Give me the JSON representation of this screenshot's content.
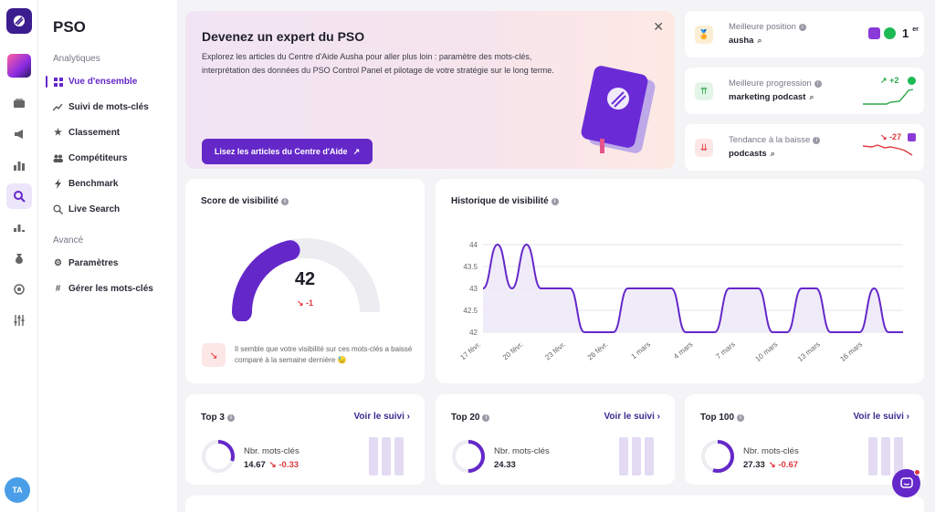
{
  "sidebar": {
    "title": "PSO",
    "section_analytics": "Analytiques",
    "section_advanced": "Avancé",
    "items": [
      {
        "label": "Vue d'ensemble",
        "icon": "grid-icon",
        "active": true
      },
      {
        "label": "Suivi de mots-clés",
        "icon": "trend-icon"
      },
      {
        "label": "Classement",
        "icon": "star-icon"
      },
      {
        "label": "Compétiteurs",
        "icon": "users-icon"
      },
      {
        "label": "Benchmark",
        "icon": "bolt-icon"
      },
      {
        "label": "Live Search",
        "icon": "search-icon"
      }
    ],
    "advanced_items": [
      {
        "label": "Paramètres",
        "icon": "gear-icon"
      },
      {
        "label": "Gérer les mots-clés",
        "icon": "hashtag-settings-icon"
      }
    ]
  },
  "rail": {
    "avatar_initials": "TA"
  },
  "promo": {
    "title": "Devenez un expert du PSO",
    "body": "Explorez les articles du Centre d'Aide Ausha pour aller plus loin : paramètre des mots-clés, interprétation des données du PSO Control Panel et pilotage de votre stratégie sur le long terme.",
    "cta": "Lisez les articles du Centre d'Aide"
  },
  "stats": [
    {
      "label": "Meilleure position",
      "value": "ausha",
      "rank": "1",
      "rank_suffix": "er",
      "badge_color": "#fbeed3"
    },
    {
      "label": "Meilleure progression",
      "value": "marketing podcast",
      "delta": "+2",
      "delta_color": "#2aa84a",
      "badge_color": "#e3f5e6"
    },
    {
      "label": "Tendance à la baisse",
      "value": "podcasts",
      "delta": "-27",
      "delta_color": "#e0393e",
      "badge_color": "#fde6e6"
    }
  ],
  "visibility_score": {
    "title": "Score de visibilité",
    "value": "42",
    "fraction": 0.42,
    "delta": "-1",
    "note": "Il semble que votre visibilité sur ces mots-clés a baissé comparé à la semaine dernière 😓"
  },
  "history": {
    "title": "Historique de visibilité",
    "chart_data": {
      "type": "line",
      "ylim": [
        42,
        44
      ],
      "y_ticks": [
        "44",
        "43.5",
        "43",
        "42.5",
        "42"
      ],
      "x_ticks": [
        "17 févr.",
        "20 févr.",
        "23 févr.",
        "26 févr.",
        "1 mars",
        "4 mars",
        "7 mars",
        "10 mars",
        "13 mars",
        "16 mars"
      ],
      "x": [
        0,
        1,
        2,
        3,
        4,
        5,
        6,
        7,
        8,
        9,
        10,
        11,
        12,
        13,
        14,
        15,
        16,
        17,
        18,
        19,
        20,
        21,
        22,
        23,
        24,
        25,
        26,
        27,
        28,
        29
      ],
      "values": [
        43,
        44,
        43,
        44,
        43,
        43,
        43,
        42,
        42,
        42,
        43,
        43,
        43,
        43,
        42,
        42,
        42,
        43,
        43,
        43,
        42,
        42,
        43,
        43,
        42,
        42,
        42,
        43,
        42,
        42
      ]
    }
  },
  "topn": [
    {
      "title": "Top 3",
      "link": "Voir le suivi",
      "label": "Nbr. mots-clés",
      "value": "14.67",
      "delta": "-0.33",
      "fraction": 0.3
    },
    {
      "title": "Top 20",
      "link": "Voir le suivi",
      "label": "Nbr. mots-clés",
      "value": "24.33",
      "delta": "",
      "fraction": 0.5
    },
    {
      "title": "Top 100",
      "link": "Voir le suivi",
      "label": "Nbr. mots-clés",
      "value": "27.33",
      "delta": "-0.67",
      "fraction": 0.55
    }
  ],
  "colors": {
    "accent": "#6428c9",
    "negative": "#e0393e",
    "positive": "#2aa84a"
  }
}
